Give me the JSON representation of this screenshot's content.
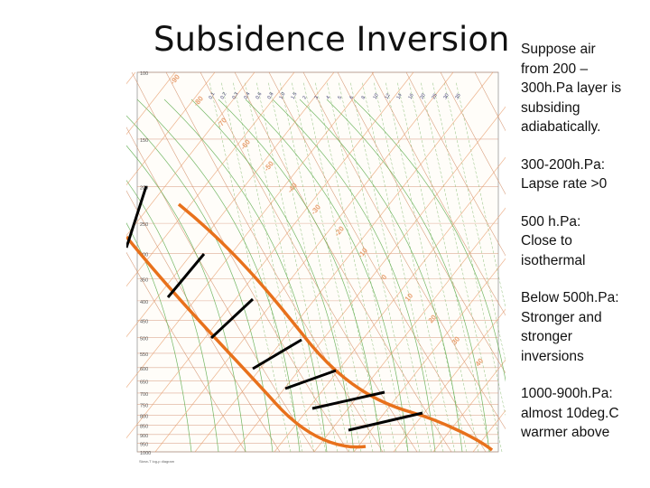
{
  "slide": {
    "title": "Subsidence Inversion"
  },
  "diagram": {
    "colors": {
      "background": "#ffffff",
      "isotherm": "#e8a070",
      "isobar": "#d08a6a",
      "dry_adiabat": "#d08860",
      "moist_adiabat": "#5aaa4a",
      "mixing_ratio": "#8fbf7a",
      "sounding": "#e8711c",
      "layer_marker": "#000000"
    },
    "pressure_labels": [
      "100",
      "150",
      "200",
      "250",
      "300",
      "350",
      "400",
      "450",
      "500",
      "550",
      "600",
      "650",
      "700",
      "750",
      "800",
      "850",
      "900",
      "950",
      "1000"
    ],
    "isotherm_labels": [
      "-90",
      "-80",
      "-70",
      "-60",
      "-50",
      "-40",
      "-30",
      "-20",
      "-10",
      "0",
      "10",
      "20",
      "30",
      "40"
    ],
    "mixing_ratio_labels": [
      "0.1",
      "0.2",
      "0.3",
      "0.4",
      "0.6",
      "0.8",
      "1.0",
      "1.5",
      "2",
      "3",
      "4",
      "5",
      "6",
      "8",
      "10",
      "12",
      "14",
      "16",
      "20",
      "25",
      "30",
      "35"
    ],
    "footer_left": "Skew-T log-p diagram",
    "footer_right": ""
  },
  "notes": [
    "Suppose air\nfrom 200 –\n300h.Pa layer is\nsubsiding\nadiabatically.",
    "300-200h.Pa:\nLapse rate >0",
    "500 h.Pa:\nClose to\nisothermal",
    "Below 500h.Pa:\nStronger and\nstronger\ninversions",
    "1000-900h.Pa:\nalmost 10deg.C\nwarmer above"
  ]
}
